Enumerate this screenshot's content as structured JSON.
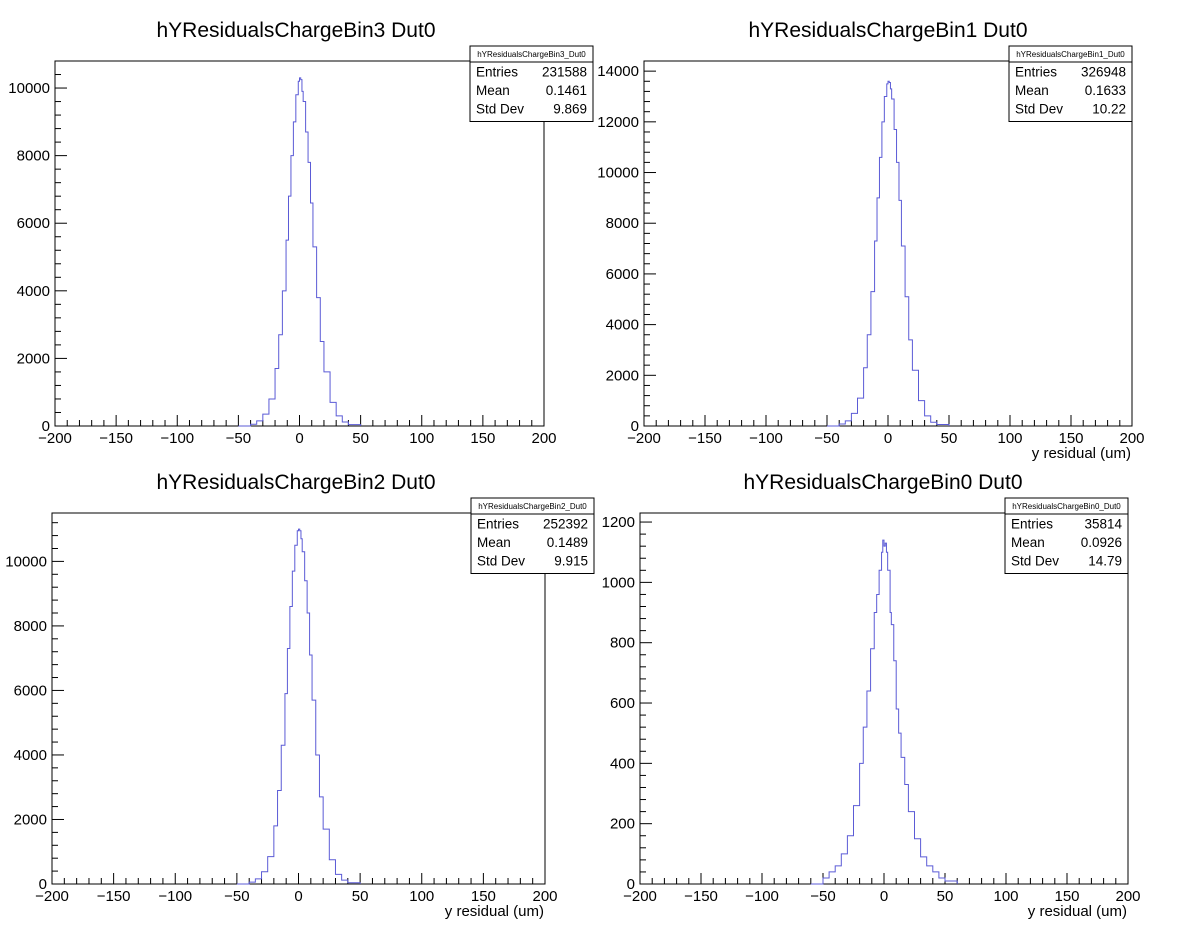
{
  "colors": {
    "line": "#5b5bd6",
    "axis": "#000000",
    "background": "#ffffff"
  },
  "chart_data": [
    {
      "type": "line",
      "title": "hYResidualsChargeBin3  Dut0",
      "xlabel": "",
      "ylabel": "",
      "xlim": [
        -200,
        200
      ],
      "ylim": [
        0,
        10800
      ],
      "xticks": [
        -200,
        -150,
        -100,
        -50,
        0,
        50,
        100,
        150,
        200
      ],
      "yticks": [
        0,
        2000,
        4000,
        6000,
        8000,
        10000
      ],
      "grid": false,
      "stats": {
        "name": "hYResidualsChargeBin3_Dut0",
        "rows": [
          {
            "label": "Entries",
            "value": "231588"
          },
          {
            "label": "Mean",
            "value": "0.1461"
          },
          {
            "label": "Std Dev",
            "value": "9.869"
          }
        ]
      },
      "series": [
        {
          "x": [
            -50,
            -40,
            -35,
            -30,
            -25,
            -20,
            -17,
            -14,
            -11,
            -9,
            -7,
            -5,
            -3,
            -1,
            0,
            1,
            2,
            3,
            5,
            7,
            9,
            11,
            14,
            17,
            20,
            25,
            30,
            35,
            40,
            50
          ],
          "values": [
            0,
            50,
            150,
            350,
            800,
            1700,
            2700,
            4000,
            5500,
            6800,
            8000,
            9000,
            9800,
            10200,
            10300,
            10250,
            9900,
            9600,
            8700,
            7800,
            6600,
            5300,
            3800,
            2500,
            1600,
            700,
            300,
            120,
            40,
            0
          ]
        }
      ]
    },
    {
      "type": "line",
      "title": "hYResidualsChargeBin1  Dut0",
      "xlabel": "y residual (um)",
      "ylabel": "",
      "xlim": [
        -200,
        200
      ],
      "ylim": [
        0,
        14400
      ],
      "xticks": [
        -200,
        -150,
        -100,
        -50,
        0,
        50,
        100,
        150,
        200
      ],
      "yticks": [
        0,
        2000,
        4000,
        6000,
        8000,
        10000,
        12000,
        14000
      ],
      "grid": false,
      "stats": {
        "name": "hYResidualsChargeBin1_Dut0",
        "rows": [
          {
            "label": "Entries",
            "value": "326948"
          },
          {
            "label": "Mean",
            "value": "0.1633"
          },
          {
            "label": "Std Dev",
            "value": "10.22"
          }
        ]
      },
      "series": [
        {
          "x": [
            -50,
            -40,
            -35,
            -30,
            -25,
            -20,
            -17,
            -14,
            -11,
            -9,
            -7,
            -5,
            -3,
            -1,
            0,
            1,
            2,
            3,
            5,
            7,
            9,
            11,
            14,
            17,
            20,
            25,
            30,
            35,
            40,
            50
          ],
          "values": [
            0,
            80,
            200,
            500,
            1100,
            2300,
            3600,
            5300,
            7300,
            9000,
            10600,
            12000,
            13000,
            13500,
            13600,
            13550,
            13300,
            12900,
            11700,
            10400,
            8900,
            7100,
            5100,
            3400,
            2200,
            1000,
            400,
            150,
            60,
            0
          ]
        }
      ]
    },
    {
      "type": "line",
      "title": "hYResidualsChargeBin2  Dut0",
      "xlabel": "y residual (um)",
      "ylabel": "",
      "xlim": [
        -200,
        200
      ],
      "ylim": [
        0,
        11500
      ],
      "xticks": [
        -200,
        -150,
        -100,
        -50,
        0,
        50,
        100,
        150,
        200
      ],
      "yticks": [
        0,
        2000,
        4000,
        6000,
        8000,
        10000
      ],
      "grid": false,
      "stats": {
        "name": "hYResidualsChargeBin2_Dut0",
        "rows": [
          {
            "label": "Entries",
            "value": "252392"
          },
          {
            "label": "Mean",
            "value": "0.1489"
          },
          {
            "label": "Std Dev",
            "value": "9.915"
          }
        ]
      },
      "series": [
        {
          "x": [
            -50,
            -40,
            -35,
            -30,
            -25,
            -20,
            -17,
            -14,
            -11,
            -9,
            -7,
            -5,
            -3,
            -1,
            0,
            1,
            2,
            3,
            5,
            7,
            9,
            11,
            14,
            17,
            20,
            25,
            30,
            35,
            40,
            50
          ],
          "values": [
            0,
            60,
            160,
            380,
            850,
            1800,
            2900,
            4300,
            5900,
            7300,
            8600,
            9700,
            10500,
            10950,
            11000,
            10950,
            10700,
            10300,
            9400,
            8400,
            7100,
            5700,
            4000,
            2700,
            1700,
            750,
            300,
            120,
            40,
            0
          ]
        }
      ]
    },
    {
      "type": "line",
      "title": "hYResidualsChargeBin0  Dut0",
      "xlabel": "y residual (um)",
      "ylabel": "",
      "xlim": [
        -200,
        200
      ],
      "ylim": [
        0,
        1230
      ],
      "xticks": [
        -200,
        -150,
        -100,
        -50,
        0,
        50,
        100,
        150,
        200
      ],
      "yticks": [
        0,
        200,
        400,
        600,
        800,
        1000,
        1200
      ],
      "grid": false,
      "stats": {
        "name": "hYResidualsChargeBin0_Dut0",
        "rows": [
          {
            "label": "Entries",
            "value": "35814"
          },
          {
            "label": "Mean",
            "value": "0.0926"
          },
          {
            "label": "Std Dev",
            "value": "14.79"
          }
        ]
      },
      "series": [
        {
          "x": [
            -60,
            -50,
            -45,
            -40,
            -35,
            -30,
            -25,
            -20,
            -17,
            -14,
            -11,
            -8,
            -6,
            -4,
            -2,
            -1,
            0,
            1,
            2,
            3,
            5,
            6,
            8,
            10,
            12,
            14,
            17,
            20,
            25,
            30,
            35,
            40,
            45,
            50,
            60
          ],
          "values": [
            0,
            20,
            40,
            60,
            100,
            160,
            260,
            400,
            520,
            640,
            780,
            900,
            960,
            1040,
            1100,
            1140,
            1120,
            1130,
            1100,
            1040,
            900,
            860,
            740,
            580,
            500,
            420,
            330,
            240,
            150,
            90,
            60,
            40,
            20,
            10,
            0
          ]
        }
      ]
    }
  ]
}
